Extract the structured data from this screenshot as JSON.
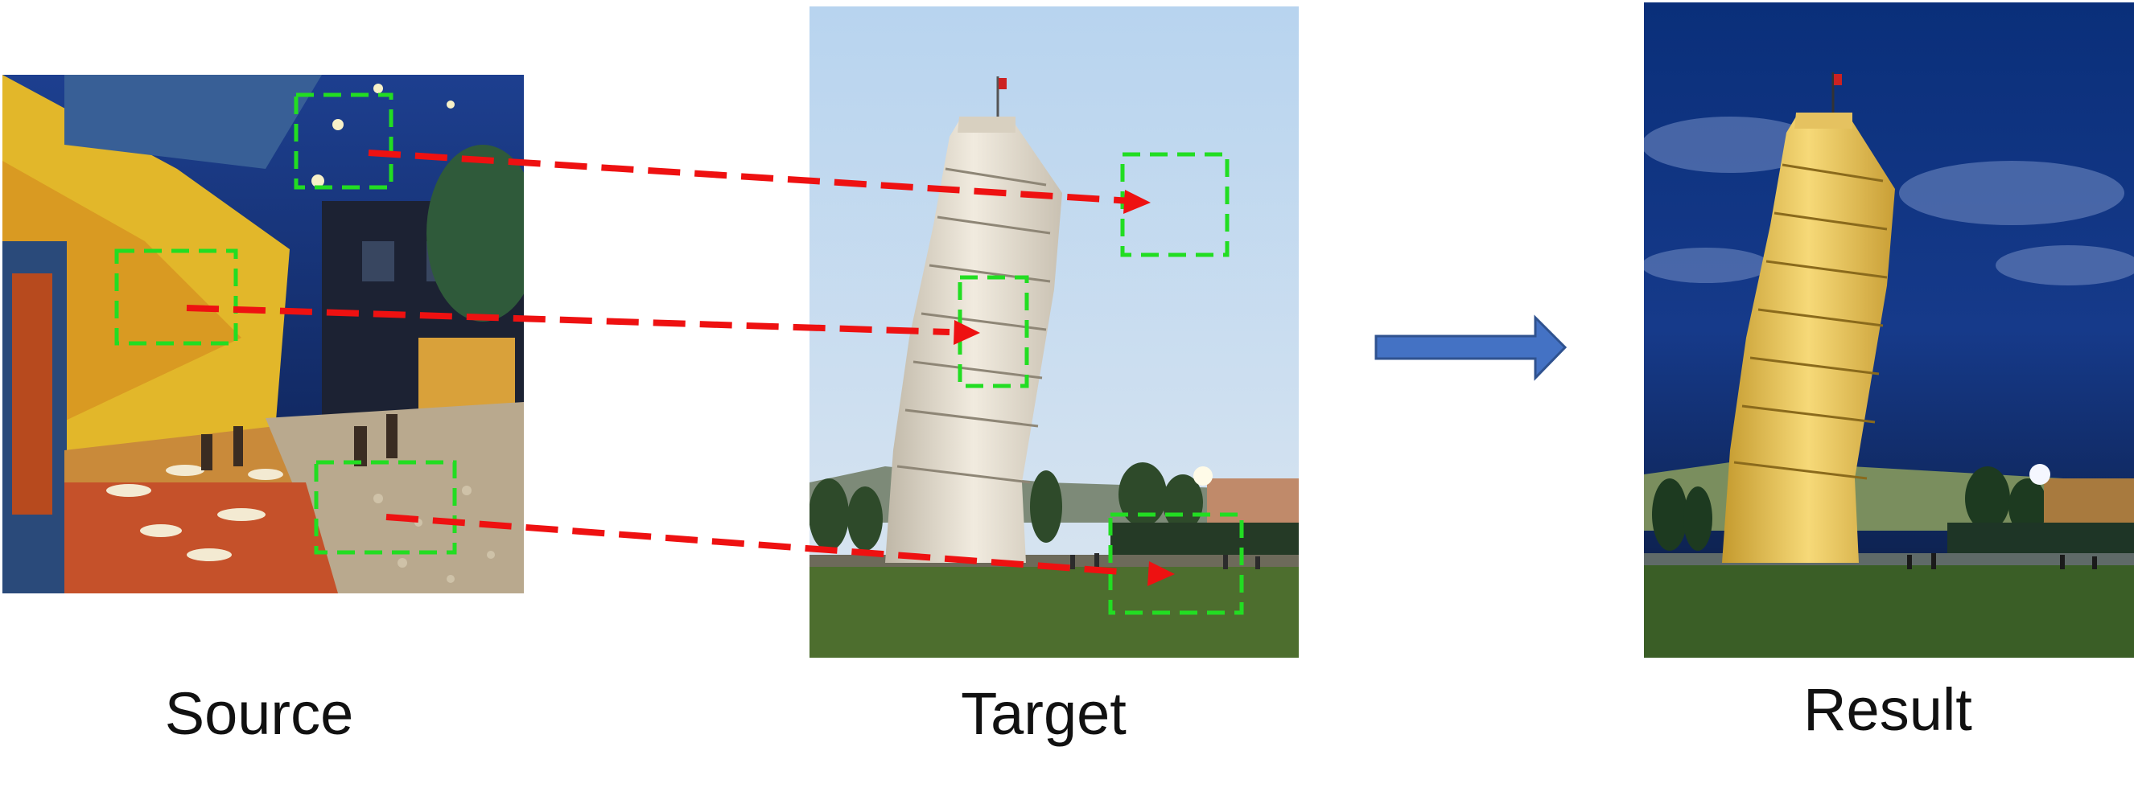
{
  "captions": {
    "source": "Source",
    "target": "Target",
    "result": "Result"
  },
  "panels": {
    "source": {
      "description_icon": "painting-cafe-terrace-at-night-icon"
    },
    "target": {
      "description_icon": "photo-leaning-tower-of-pisa-icon"
    },
    "result": {
      "description_icon": "stylized-tower-result-icon"
    }
  },
  "colors": {
    "patch_box": "#22dd22",
    "correspondence_arrow": "#ee1111",
    "transfer_arrow_fill": "#4472c4",
    "transfer_arrow_stroke": "#2f528f"
  }
}
